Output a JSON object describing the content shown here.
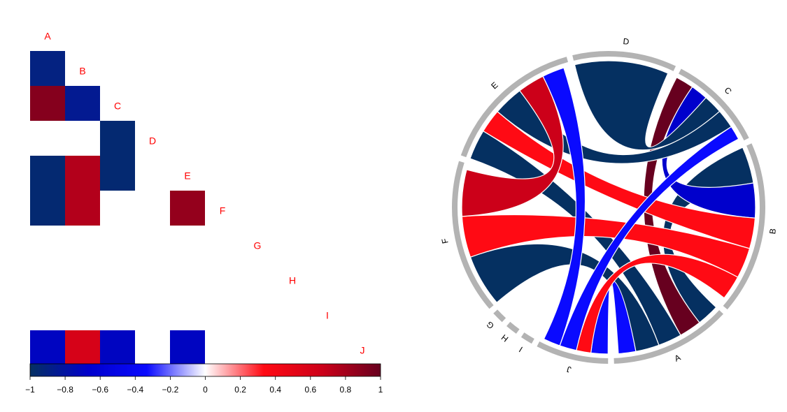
{
  "chart_data": [
    {
      "type": "heatmap",
      "layout": "lower-triangle",
      "labels": [
        "A",
        "B",
        "C",
        "D",
        "E",
        "F",
        "G",
        "H",
        "I",
        "J"
      ],
      "cells": [
        {
          "row": "B",
          "col": "A",
          "value": -0.9
        },
        {
          "row": "C",
          "col": "A",
          "value": 0.9
        },
        {
          "row": "C",
          "col": "B",
          "value": -0.85
        },
        {
          "row": "D",
          "col": "C",
          "value": -0.95
        },
        {
          "row": "E",
          "col": "A",
          "value": -0.95
        },
        {
          "row": "E",
          "col": "B",
          "value": 0.75
        },
        {
          "row": "E",
          "col": "C",
          "value": -0.95
        },
        {
          "row": "F",
          "col": "A",
          "value": -0.95
        },
        {
          "row": "F",
          "col": "B",
          "value": 0.75
        },
        {
          "row": "F",
          "col": "E",
          "value": 0.85
        },
        {
          "row": "J",
          "col": "A",
          "value": -0.7
        },
        {
          "row": "J",
          "col": "B",
          "value": 0.6
        },
        {
          "row": "J",
          "col": "C",
          "value": -0.7
        },
        {
          "row": "J",
          "col": "E",
          "value": -0.7
        }
      ],
      "colorbar": {
        "range": [
          -1,
          1
        ],
        "ticks": [
          "−1",
          "−0.8",
          "−0.6",
          "−0.4",
          "−0.2",
          "0",
          "0.2",
          "0.4",
          "0.6",
          "0.8",
          "1"
        ],
        "colors": [
          "#053061",
          "#0000cc",
          "#0a0aff",
          "#ffffff",
          "#ff0a14",
          "#cc0019",
          "#67001f"
        ]
      }
    },
    {
      "type": "chord",
      "sectors": [
        {
          "label": "A",
          "weight": 5.0
        },
        {
          "label": "B",
          "weight": 7.2
        },
        {
          "label": "C",
          "weight": 4.0
        },
        {
          "label": "D",
          "weight": 4.3
        },
        {
          "label": "E",
          "weight": 6.1
        },
        {
          "label": "F",
          "weight": 6.4
        },
        {
          "label": "G",
          "weight": 0.5
        },
        {
          "label": "H",
          "weight": 0.5
        },
        {
          "label": "I",
          "weight": 0.5
        },
        {
          "label": "J",
          "weight": 3.0
        }
      ],
      "links": [
        {
          "from": "B",
          "to": "A",
          "value": -0.9
        },
        {
          "from": "C",
          "to": "A",
          "value": 0.9
        },
        {
          "from": "C",
          "to": "B",
          "value": -0.85
        },
        {
          "from": "D",
          "to": "C",
          "value": -0.95
        },
        {
          "from": "E",
          "to": "A",
          "value": -0.95
        },
        {
          "from": "E",
          "to": "B",
          "value": 0.75
        },
        {
          "from": "E",
          "to": "C",
          "value": -0.95
        },
        {
          "from": "F",
          "to": "A",
          "value": -0.95
        },
        {
          "from": "F",
          "to": "B",
          "value": 0.75
        },
        {
          "from": "F",
          "to": "E",
          "value": 0.85
        },
        {
          "from": "J",
          "to": "A",
          "value": -0.7
        },
        {
          "from": "J",
          "to": "B",
          "value": 0.6
        },
        {
          "from": "J",
          "to": "C",
          "value": -0.7
        },
        {
          "from": "J",
          "to": "E",
          "value": -0.7
        }
      ],
      "colors": {
        "negative": [
          "#0a0aff",
          "#0000cc",
          "#053061"
        ],
        "positive": [
          "#ff0a14",
          "#cc0019",
          "#67001f"
        ],
        "track": "#b3b3b3"
      }
    }
  ]
}
